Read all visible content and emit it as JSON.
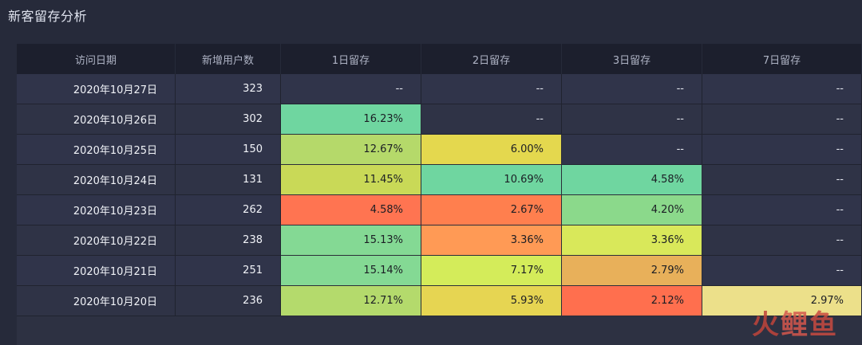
{
  "title": "新客留存分析",
  "columns": [
    "访问日期",
    "新增用户数",
    "1日留存",
    "2日留存",
    "3日留存",
    "7日留存"
  ],
  "empty_marker": "--",
  "rows": [
    {
      "date": "2020年10月27日",
      "users": "323",
      "d1": "--",
      "d2": "--",
      "d3": "--",
      "d7": "--"
    },
    {
      "date": "2020年10月26日",
      "users": "302",
      "d1": "16.23%",
      "d2": "--",
      "d3": "--",
      "d7": "--"
    },
    {
      "date": "2020年10月25日",
      "users": "150",
      "d1": "12.67%",
      "d2": "6.00%",
      "d3": "--",
      "d7": "--"
    },
    {
      "date": "2020年10月24日",
      "users": "131",
      "d1": "11.45%",
      "d2": "10.69%",
      "d3": "4.58%",
      "d7": "--"
    },
    {
      "date": "2020年10月23日",
      "users": "262",
      "d1": "4.58%",
      "d2": "2.67%",
      "d3": "4.20%",
      "d7": "--"
    },
    {
      "date": "2020年10月22日",
      "users": "238",
      "d1": "15.13%",
      "d2": "3.36%",
      "d3": "3.36%",
      "d7": "--"
    },
    {
      "date": "2020年10月21日",
      "users": "251",
      "d1": "15.14%",
      "d2": "7.17%",
      "d3": "2.79%",
      "d7": "--"
    },
    {
      "date": "2020年10月20日",
      "users": "236",
      "d1": "12.71%",
      "d2": "5.93%",
      "d3": "2.12%",
      "d7": "2.97%"
    }
  ],
  "heat_colors": {
    "r1": {
      "d1": "#6fd6a0"
    },
    "r2": {
      "d1": "#b5d96a",
      "d2": "#e4d84e"
    },
    "r3": {
      "d1": "#c9d957",
      "d2": "#6fd6a0",
      "d3": "#6fd6a0"
    },
    "r4": {
      "d1": "#ff7451",
      "d2": "#ff7f4e",
      "d3": "#8bd98b"
    },
    "r5": {
      "d1": "#84d994",
      "d2": "#ff9a55",
      "d3": "#d9e85a"
    },
    "r6": {
      "d1": "#84d994",
      "d2": "#d4ec5a",
      "d3": "#e8b05a"
    },
    "r7": {
      "d1": "#b4da6c",
      "d2": "#e6d552",
      "d3": "#ff6f4e",
      "d7": "#ece08a"
    }
  },
  "watermark": {
    "c1": "火",
    "c2": "鲤",
    "c3": "鱼"
  }
}
